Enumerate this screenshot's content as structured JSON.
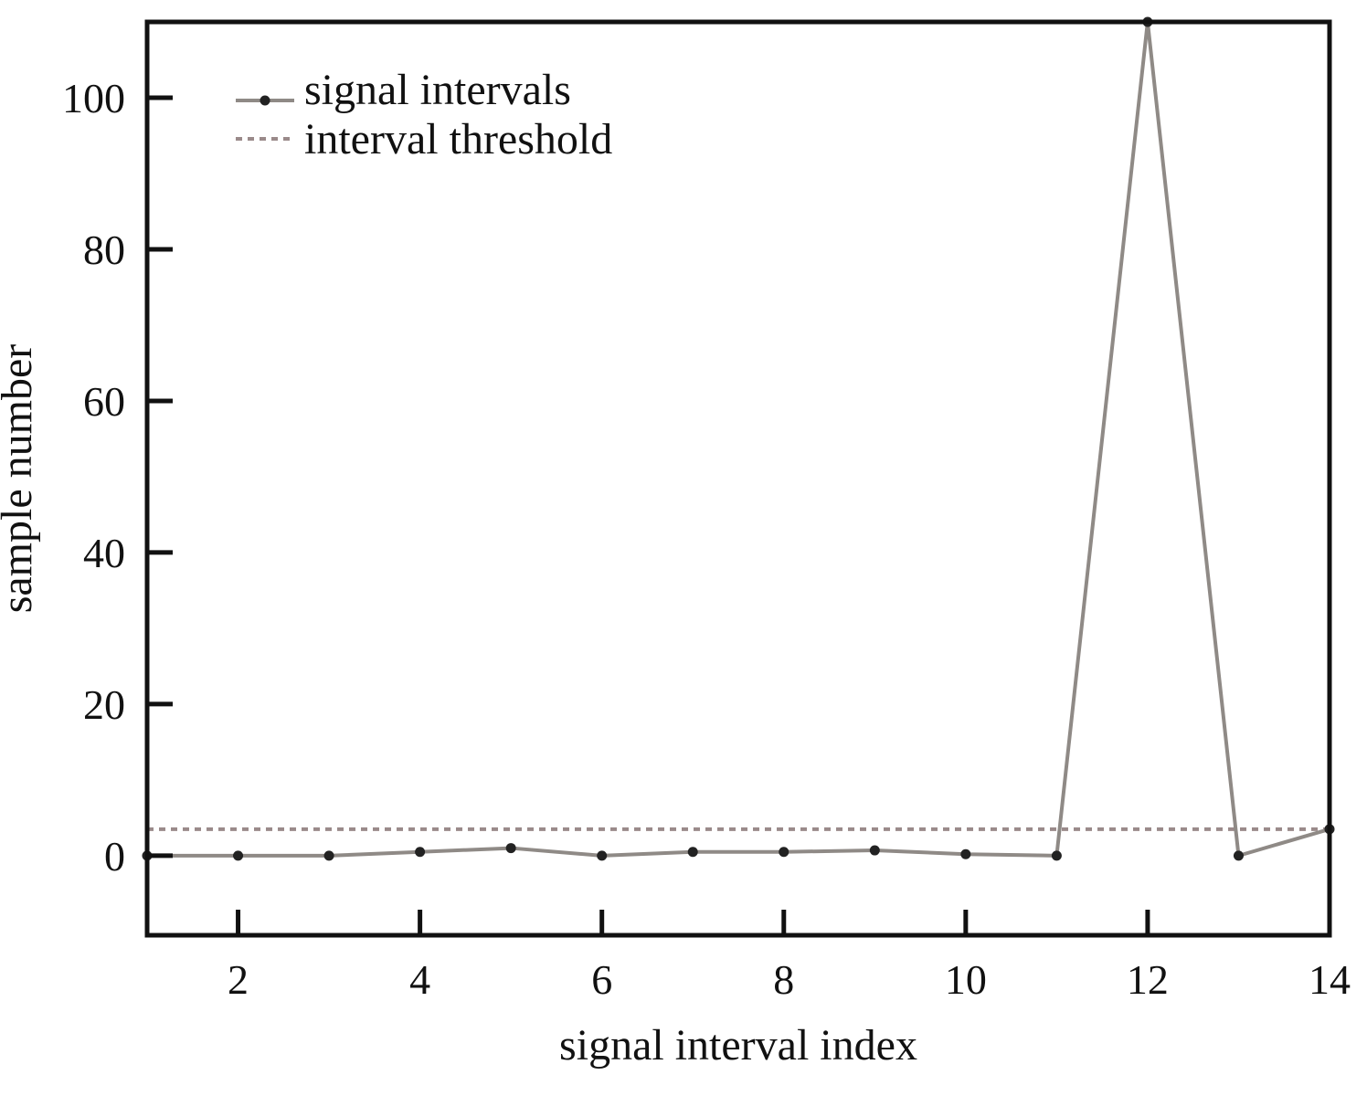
{
  "chart_data": {
    "type": "line",
    "title": "",
    "xlabel": "signal interval index",
    "ylabel": "sample number",
    "xlim": [
      1,
      14
    ],
    "ylim": [
      -10.5,
      110
    ],
    "xticks": [
      2,
      4,
      6,
      8,
      10,
      12,
      14
    ],
    "yticks": [
      0,
      20,
      40,
      60,
      80,
      100
    ],
    "grid": false,
    "legend_position": "top-left",
    "series": [
      {
        "name": "signal intervals",
        "style": "solid line with dot markers",
        "color": "#8f8a86",
        "marker_color": "#222222",
        "x": [
          1,
          2,
          3,
          4,
          5,
          6,
          7,
          8,
          9,
          10,
          11,
          12,
          13,
          14
        ],
        "y": [
          0,
          0,
          0,
          0.5,
          1,
          0,
          0.5,
          0.5,
          0.7,
          0.2,
          0,
          110,
          0,
          3.5
        ]
      },
      {
        "name": "interval threshold",
        "style": "dotted line",
        "color": "#9a8a8a",
        "x": [
          1,
          14
        ],
        "y": [
          3.5,
          3.5
        ]
      }
    ]
  }
}
